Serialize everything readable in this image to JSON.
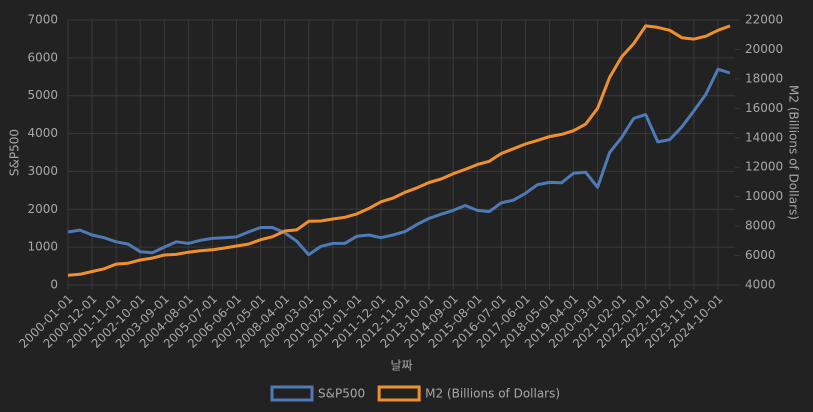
{
  "chart_data": {
    "type": "line",
    "x": [
      "2000-01-01",
      null,
      "2000-12-01",
      null,
      "2001-11-01",
      null,
      "2002-10-01",
      null,
      "2003-09-01",
      null,
      "2004-08-01",
      null,
      "2005-07-01",
      null,
      "2006-06-01",
      null,
      "2007-05-01",
      null,
      "2008-04-01",
      null,
      "2009-03-01",
      null,
      "2010-02-01",
      null,
      "2011-01-01",
      null,
      "2011-12-01",
      null,
      "2012-11-01",
      null,
      "2013-10-01",
      null,
      "2014-09-01",
      null,
      "2015-08-01",
      null,
      "2016-07-01",
      null,
      "2017-06-01",
      null,
      "2018-05-01",
      null,
      "2019-04-01",
      null,
      "2020-03-01",
      null,
      "2021-02-01",
      null,
      "2022-01-01",
      null,
      "2022-12-01",
      null,
      "2023-11-01",
      null,
      "2024-10-01",
      null
    ],
    "xlabel": "날짜",
    "ylabel": "S&P500",
    "y2label": "M2 (Billions of Dollars)",
    "ylim": [
      0,
      7000
    ],
    "yticks": [
      0,
      1000,
      2000,
      3000,
      4000,
      5000,
      6000,
      7000
    ],
    "y2lim": [
      4000,
      22000
    ],
    "y2ticks": [
      4000,
      6000,
      8000,
      10000,
      12000,
      14000,
      16000,
      18000,
      20000,
      22000
    ],
    "grid": true,
    "legend": "bottom",
    "series": [
      {
        "name": "S&P500",
        "color": "#4e7ab5",
        "values": [
          1400,
          1450,
          1320,
          1250,
          1140,
          1080,
          880,
          850,
          1000,
          1140,
          1100,
          1180,
          1230,
          1250,
          1270,
          1400,
          1520,
          1520,
          1380,
          1160,
          800,
          1020,
          1100,
          1100,
          1290,
          1320,
          1250,
          1320,
          1410,
          1600,
          1760,
          1870,
          1970,
          2100,
          1970,
          1940,
          2170,
          2240,
          2420,
          2650,
          2710,
          2700,
          2950,
          2980,
          2580,
          3500,
          3900,
          4400,
          4500,
          3780,
          3840,
          4180,
          4600,
          5040,
          5700,
          5600
        ]
      },
      {
        "name": "M2 (Billions of Dollars)",
        "color": "#f0902d",
        "axis": "y2",
        "values": [
          4660,
          4730,
          4920,
          5100,
          5420,
          5480,
          5700,
          5830,
          6040,
          6080,
          6230,
          6320,
          6390,
          6510,
          6650,
          6780,
          7080,
          7280,
          7670,
          7740,
          8330,
          8350,
          8480,
          8600,
          8830,
          9200,
          9650,
          9900,
          10300,
          10600,
          10960,
          11200,
          11560,
          11850,
          12180,
          12400,
          12930,
          13250,
          13580,
          13820,
          14080,
          14230,
          14480,
          14920,
          16000,
          18100,
          19500,
          20400,
          21600,
          21500,
          21300,
          20800,
          20700,
          20900,
          21300,
          21600
        ]
      }
    ]
  }
}
